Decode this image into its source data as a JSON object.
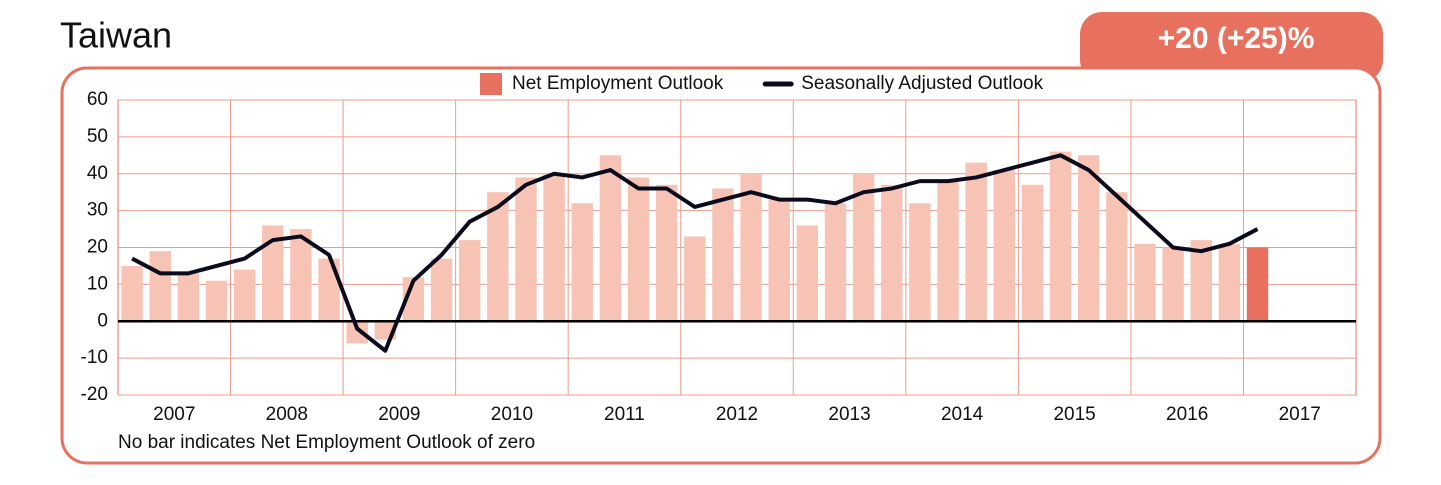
{
  "chart_data": {
    "type": "bar-line",
    "title": "Taiwan",
    "badge": "+20 (+25)%",
    "note": "No bar indicates Net Employment Outlook of zero",
    "categories": [
      "2007",
      null,
      null,
      null,
      "2008",
      null,
      null,
      null,
      "2009",
      null,
      null,
      null,
      "2010",
      null,
      null,
      null,
      "2011",
      null,
      null,
      null,
      "2012",
      null,
      null,
      null,
      "2013",
      null,
      null,
      null,
      "2014",
      null,
      null,
      null,
      "2015",
      null,
      null,
      null,
      "2016",
      null,
      null,
      null,
      "2017"
    ],
    "series": [
      {
        "name": "Net Employment Outlook",
        "type": "bar",
        "color": "#f6c3b5",
        "last_color": "#e8705e",
        "values": [
          15,
          19,
          13,
          11,
          14,
          26,
          25,
          17,
          -6,
          -5,
          12,
          17,
          22,
          35,
          39,
          40,
          32,
          45,
          39,
          37,
          23,
          36,
          40,
          33,
          26,
          32,
          40,
          37,
          32,
          38,
          43,
          41,
          37,
          46,
          45,
          35,
          21,
          20,
          22,
          21,
          20
        ]
      },
      {
        "name": "Seasonally Adjusted Outlook",
        "type": "line",
        "color": "#0b0b1e",
        "values": [
          17,
          13,
          13,
          15,
          17,
          22,
          23,
          18,
          -2,
          -8,
          11,
          18,
          27,
          31,
          37,
          40,
          39,
          41,
          36,
          36,
          31,
          33,
          35,
          33,
          33,
          32,
          35,
          36,
          38,
          38,
          39,
          41,
          43,
          45,
          41,
          34,
          27,
          20,
          19,
          21,
          25
        ]
      }
    ],
    "ylim": [
      -20,
      60
    ],
    "yticks": [
      -20,
      -10,
      0,
      10,
      20,
      30,
      40,
      50,
      60
    ],
    "grid": true
  }
}
